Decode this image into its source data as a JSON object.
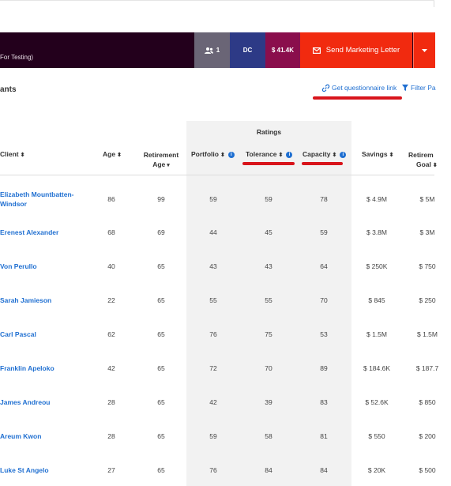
{
  "banner": {
    "title": "For Testing)",
    "stat_users": "1",
    "stat_dc": "DC",
    "stat_amount": "$ 41.4K",
    "send_label": "Send Marketing Letter",
    "colors": {
      "bar": "#23001c",
      "send": "#f12a0f"
    }
  },
  "section": {
    "title": "ants",
    "questionnaire_link": "Get questionnaire link",
    "filter_label": "Filter Pa"
  },
  "table": {
    "ratings_group": "Ratings",
    "headers": {
      "client": "Client",
      "age": "Age",
      "retirement_age_1": "Retirement",
      "retirement_age_2": "Age",
      "portfolio": "Portfolio",
      "tolerance": "Tolerance",
      "capacity": "Capacity",
      "savings": "Savings",
      "retire_goal_1": "Retirem",
      "retire_goal_2": "Goal"
    },
    "rows": [
      {
        "name": [
          "Elizabeth Mountbatten-",
          "Windsor"
        ],
        "age": "86",
        "ret_age": "99",
        "portfolio": "59",
        "tolerance": "59",
        "capacity": "78",
        "savings": "$ 4.9M",
        "goal": "$ 5M"
      },
      {
        "name": [
          "Erenest Alexander"
        ],
        "age": "68",
        "ret_age": "69",
        "portfolio": "44",
        "tolerance": "45",
        "capacity": "59",
        "savings": "$ 3.8M",
        "goal": "$ 3M"
      },
      {
        "name": [
          "Von Perullo"
        ],
        "age": "40",
        "ret_age": "65",
        "portfolio": "43",
        "tolerance": "43",
        "capacity": "64",
        "savings": "$ 250K",
        "goal": "$ 750"
      },
      {
        "name": [
          "Sarah Jamieson"
        ],
        "age": "22",
        "ret_age": "65",
        "portfolio": "55",
        "tolerance": "55",
        "capacity": "70",
        "savings": "$ 845",
        "goal": "$ 250"
      },
      {
        "name": [
          "Carl Pascal"
        ],
        "age": "62",
        "ret_age": "65",
        "portfolio": "76",
        "tolerance": "75",
        "capacity": "53",
        "savings": "$ 1.5M",
        "goal": "$ 1.5M"
      },
      {
        "name": [
          "Franklin Apeloko"
        ],
        "age": "42",
        "ret_age": "65",
        "portfolio": "72",
        "tolerance": "70",
        "capacity": "89",
        "savings": "$ 184.6K",
        "goal": "$ 187.7"
      },
      {
        "name": [
          "James Andreou"
        ],
        "age": "28",
        "ret_age": "65",
        "portfolio": "42",
        "tolerance": "39",
        "capacity": "83",
        "savings": "$ 52.6K",
        "goal": "$ 850"
      },
      {
        "name": [
          "Areum Kwon"
        ],
        "age": "28",
        "ret_age": "65",
        "portfolio": "59",
        "tolerance": "58",
        "capacity": "81",
        "savings": "$ 550",
        "goal": "$ 200"
      },
      {
        "name": [
          "Luke St Angelo"
        ],
        "age": "27",
        "ret_age": "65",
        "portfolio": "76",
        "tolerance": "84",
        "capacity": "84",
        "savings": "$ 20K",
        "goal": "$ 500"
      }
    ]
  }
}
